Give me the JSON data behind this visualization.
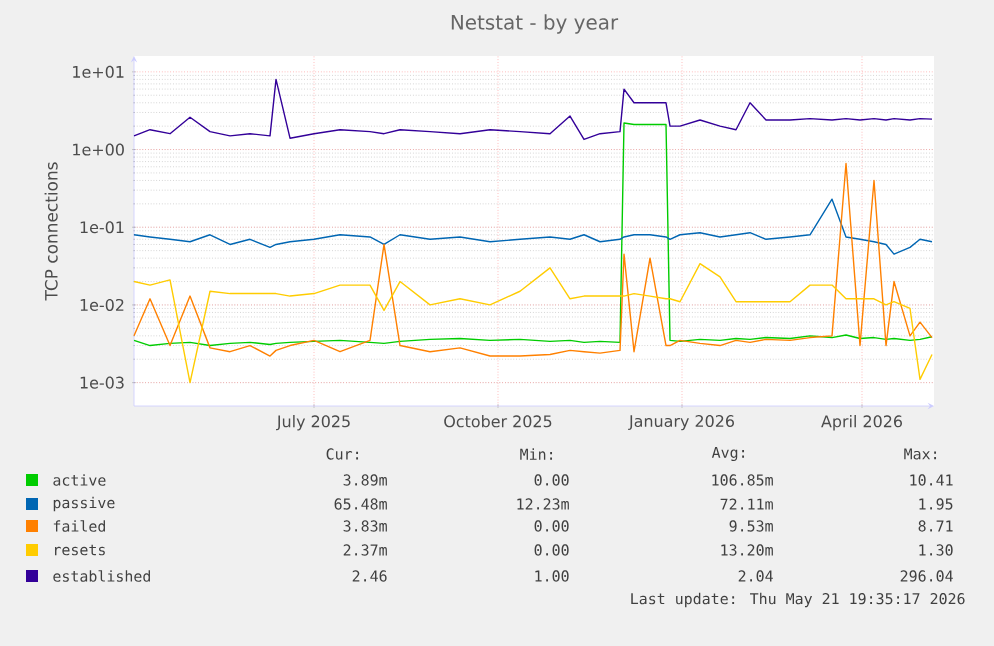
{
  "chart_data": {
    "type": "line",
    "title": "Netstat - by year",
    "ylabel": "TCP connections",
    "log": true,
    "grid": true,
    "legend": "bottom",
    "xlim": [
      "2025-04-02",
      "2026-05-07"
    ],
    "xticks": [
      {
        "value": "2025-07-01",
        "label": "July 2025"
      },
      {
        "value": "2025-10-01",
        "label": "October 2025"
      },
      {
        "value": "2026-01-01",
        "label": "January 2026"
      },
      {
        "value": "2026-04-01",
        "label": "April 2026"
      }
    ],
    "ylim": [
      0.0005,
      16
    ],
    "yticks": [
      {
        "value": 0.001,
        "label": "1e-03"
      },
      {
        "value": 0.01,
        "label": "1e-02"
      },
      {
        "value": 0.1,
        "label": "1e-01"
      },
      {
        "value": 1,
        "label": "1e+00"
      },
      {
        "value": 10,
        "label": "1e+01"
      }
    ],
    "x": [
      "2025-04-02",
      "2025-04-10",
      "2025-04-20",
      "2025-04-30",
      "2025-05-10",
      "2025-05-20",
      "2025-05-30",
      "2025-06-09",
      "2025-06-12",
      "2025-06-19",
      "2025-07-01",
      "2025-07-14",
      "2025-07-29",
      "2025-08-05",
      "2025-08-13",
      "2025-08-28",
      "2025-09-12",
      "2025-09-27",
      "2025-10-12",
      "2025-10-27",
      "2025-11-06",
      "2025-11-13",
      "2025-11-21",
      "2025-12-01",
      "2025-12-03",
      "2025-12-08",
      "2025-12-16",
      "2025-12-24",
      "2025-12-26",
      "2025-12-31",
      "2026-01-10",
      "2026-01-20",
      "2026-01-28",
      "2026-02-04",
      "2026-02-12",
      "2026-02-24",
      "2026-03-06",
      "2026-03-17",
      "2026-03-24",
      "2026-03-31",
      "2026-04-07",
      "2026-04-13",
      "2026-04-17",
      "2026-04-25",
      "2026-04-30",
      "2026-05-06"
    ],
    "series": [
      {
        "name": "active",
        "color": "#00cc00",
        "values": [
          0.0035,
          0.003,
          0.0032,
          0.0033,
          0.003,
          0.0032,
          0.0033,
          0.0031,
          0.0032,
          0.0033,
          0.0034,
          0.0035,
          0.0033,
          0.0032,
          0.0034,
          0.0036,
          0.0037,
          0.0035,
          0.0036,
          0.0034,
          0.0035,
          0.0033,
          0.0034,
          0.0033,
          2.2,
          2.1,
          2.1,
          2.1,
          0.0035,
          0.0034,
          0.0036,
          0.0035,
          0.0037,
          0.0036,
          0.0038,
          0.0037,
          0.004,
          0.0038,
          0.0041,
          0.0037,
          0.0038,
          0.0036,
          0.0037,
          0.0035,
          0.0036,
          0.0039
        ]
      },
      {
        "name": "passive",
        "color": "#0066b3",
        "values": [
          0.08,
          0.075,
          0.07,
          0.065,
          0.08,
          0.06,
          0.07,
          0.055,
          0.06,
          0.065,
          0.07,
          0.08,
          0.075,
          0.06,
          0.08,
          0.07,
          0.075,
          0.065,
          0.07,
          0.075,
          0.07,
          0.08,
          0.065,
          0.07,
          0.075,
          0.08,
          0.08,
          0.075,
          0.07,
          0.08,
          0.085,
          0.075,
          0.08,
          0.085,
          0.07,
          0.075,
          0.08,
          0.23,
          0.075,
          0.07,
          0.065,
          0.06,
          0.045,
          0.055,
          0.07,
          0.065
        ]
      },
      {
        "name": "failed",
        "color": "#ff8000",
        "values": [
          0.004,
          0.012,
          0.003,
          0.013,
          0.0028,
          0.0025,
          0.003,
          0.0022,
          0.0026,
          0.003,
          0.0035,
          0.0025,
          0.0035,
          0.06,
          0.003,
          0.0025,
          0.0028,
          0.0022,
          0.0022,
          0.0023,
          0.0026,
          0.0025,
          0.0024,
          0.0026,
          0.045,
          0.0025,
          0.04,
          0.003,
          0.003,
          0.0035,
          0.0032,
          0.003,
          0.0035,
          0.0033,
          0.0036,
          0.0035,
          0.0038,
          0.004,
          0.66,
          0.003,
          0.4,
          0.003,
          0.02,
          0.004,
          0.006,
          0.0038
        ]
      },
      {
        "name": "resets",
        "color": "#ffcc00",
        "values": [
          0.02,
          0.018,
          0.021,
          0.001,
          0.015,
          0.014,
          0.014,
          0.014,
          0.014,
          0.013,
          0.014,
          0.018,
          0.018,
          0.0085,
          0.02,
          0.01,
          0.012,
          0.01,
          0.015,
          0.03,
          0.012,
          0.013,
          0.013,
          0.013,
          0.013,
          0.014,
          0.013,
          0.012,
          0.012,
          0.011,
          0.034,
          0.023,
          0.011,
          0.011,
          0.011,
          0.011,
          0.018,
          0.018,
          0.012,
          0.012,
          0.012,
          0.01,
          0.011,
          0.009,
          0.0011,
          0.0023
        ]
      },
      {
        "name": "established",
        "color": "#330099",
        "values": [
          1.5,
          1.8,
          1.6,
          2.6,
          1.7,
          1.5,
          1.6,
          1.5,
          8,
          1.4,
          1.6,
          1.8,
          1.7,
          1.6,
          1.8,
          1.7,
          1.6,
          1.8,
          1.7,
          1.6,
          2.7,
          1.35,
          1.6,
          1.7,
          6,
          4,
          4,
          4,
          2,
          2,
          2.4,
          2,
          1.8,
          4,
          2.4,
          2.4,
          2.5,
          2.4,
          2.5,
          2.4,
          2.5,
          2.4,
          2.5,
          2.4,
          2.5,
          2.46
        ]
      }
    ],
    "annotations": [
      "Cur:",
      "Min:",
      "Avg:",
      "Max:",
      "3.89m",
      "0.00",
      "106.85m",
      "10.41",
      "65.48m",
      "12.23m",
      "72.11m",
      "1.95",
      "3.83m",
      "0.00",
      "9.53m",
      "8.71",
      "2.37m",
      "0.00",
      "13.20m",
      "1.30",
      "2.46",
      "1.00",
      "2.04",
      "296.04",
      "Last update: Thu May 21 19:35:17 2026"
    ]
  }
}
